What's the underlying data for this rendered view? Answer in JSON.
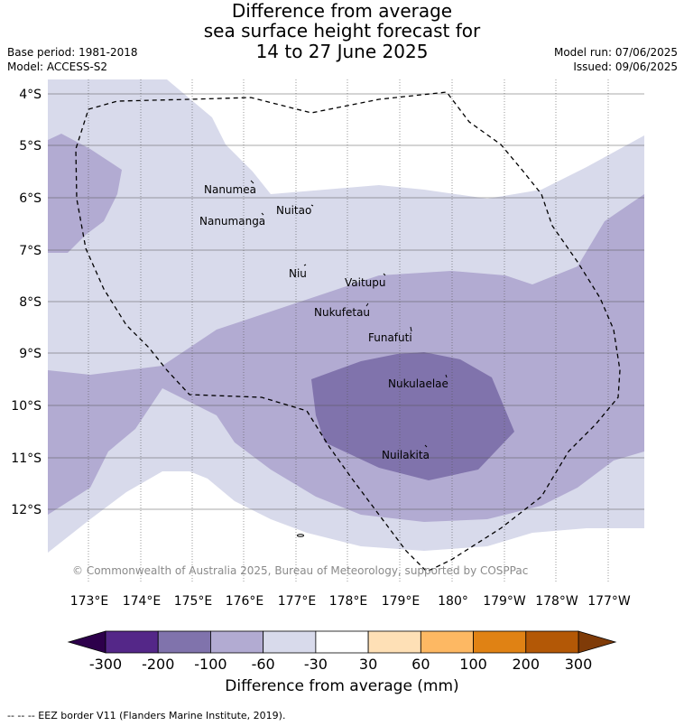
{
  "title": {
    "line1": "Difference from average",
    "line2": "sea surface height forecast for",
    "line3": "14 to 27 June 2025"
  },
  "meta": {
    "base_period": "Base period: 1981-2018",
    "model": "Model: ACCESS-S2",
    "model_run": "Model run: 07/06/2025",
    "issued": "Issued: 09/06/2025"
  },
  "map": {
    "lat_labels": [
      "4°S",
      "5°S",
      "6°S",
      "7°S",
      "8°S",
      "9°S",
      "10°S",
      "11°S",
      "12°S"
    ],
    "lon_labels": [
      "173°E",
      "174°E",
      "175°E",
      "176°E",
      "177°E",
      "178°E",
      "179°E",
      "180°",
      "179°W",
      "178°W",
      "177°W"
    ],
    "places": [
      "Nanumea",
      "Nuitao",
      "Nanumanga",
      "Niu",
      "Vaitupu",
      "Nukufetau",
      "Funafuti",
      "Nukulaelae",
      "Nuilakita"
    ],
    "credit": "© Commonwealth of Australia 2025, Bureau of Meteorology, supported by COSPPac",
    "colors": {
      "-300 to -200": "#542788",
      "-200 to -100": "#8073ac",
      "-100 to -60": "#b2abd2",
      "-60 to -30": "#d8daeb",
      "-30 to 30": "#ffffff",
      "30 to 60": "#fee0b6",
      "60 to 100": "#fdb863",
      "100 to 200": "#e08214",
      "200 to 300": "#b35806",
      "below -300": "#2d004b",
      "above 300": "#7f3b08"
    }
  },
  "colorbar": {
    "labels": [
      "-300",
      "-200",
      "-100",
      "-60",
      "-30",
      "30",
      "60",
      "100",
      "200",
      "300"
    ],
    "colors": [
      "#542788",
      "#8073ac",
      "#b2abd2",
      "#d8daeb",
      "#ffffff",
      "#fee0b6",
      "#fdb863",
      "#e08214",
      "#b35806"
    ],
    "under_color": "#2d004b",
    "over_color": "#7f3b08",
    "title": "Difference from average (mm)"
  },
  "footnote": "--  --  -- EEZ border V11 (Flanders Marine Institute, 2019)."
}
